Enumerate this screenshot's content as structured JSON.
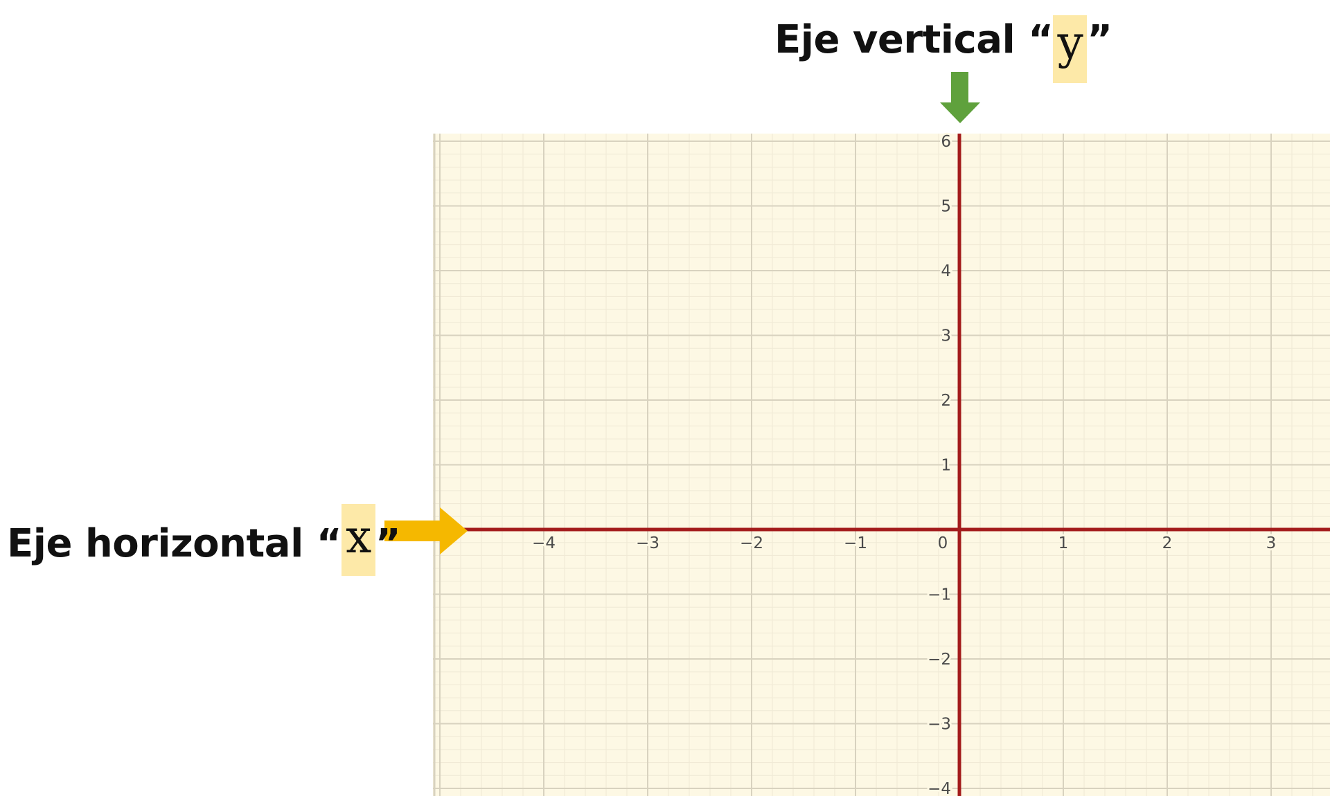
{
  "labels": {
    "vertical": {
      "prefix": "Eje vertical “",
      "var": "y",
      "suffix": "”"
    },
    "horizontal": {
      "prefix": "Eje horizontal “",
      "var": "x",
      "suffix": "”"
    }
  },
  "chart_data": {
    "type": "coordinate-plane",
    "x_ticks": [
      "−4",
      "−3",
      "−2",
      "−1",
      "0",
      "1",
      "2",
      "3"
    ],
    "y_ticks": [
      "6",
      "5",
      "4",
      "3",
      "2",
      "1",
      "−1",
      "−2",
      "−3",
      "−4"
    ],
    "x_visible_range": [
      -5,
      3.6
    ],
    "y_visible_range": [
      -4.1,
      6.1
    ],
    "grid": true,
    "minor_grid_per_unit": 5
  },
  "colors": {
    "background": "#fdf8e4",
    "major_grid": "#d8d2bf",
    "minor_grid": "#efe9d5",
    "axis": "#a31b1b",
    "tick_text": "#4a4a4a",
    "x_arrow": "#f5b800",
    "y_arrow": "#5fa13c",
    "var_highlight": "#fde9a8"
  },
  "icons": {
    "x_arrow": "arrow-right-icon",
    "y_arrow": "arrow-down-icon"
  }
}
